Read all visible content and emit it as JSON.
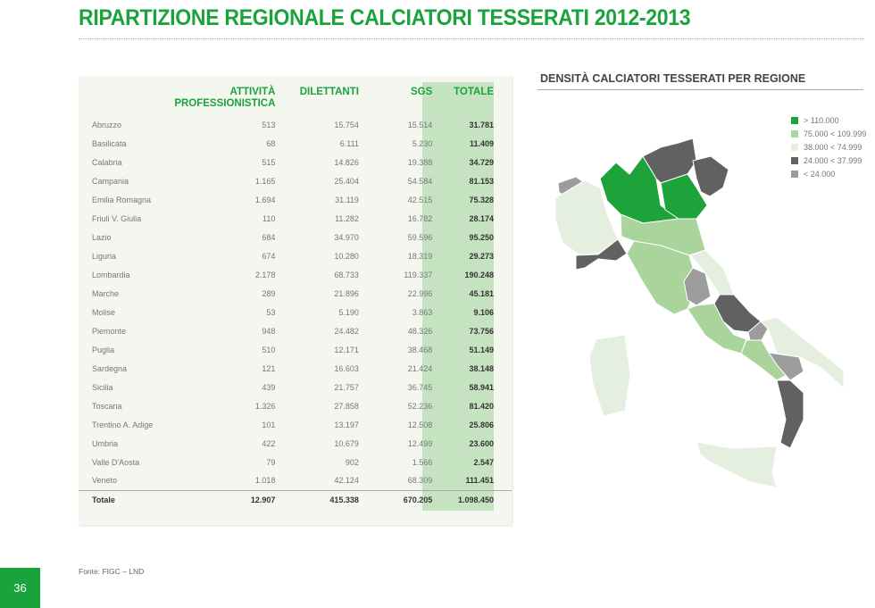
{
  "title": "RIPARTIZIONE REGIONALE CALCIATORI TESSERATI 2012-2013",
  "table": {
    "headers": [
      "",
      "ATTIVITÀ PROFESSIONISTICA",
      "DILETTANTI",
      "SGS",
      "TOTALE"
    ],
    "rows": [
      [
        "Abruzzo",
        "513",
        "15.754",
        "15.514",
        "31.781"
      ],
      [
        "Basilicata",
        "68",
        "6.111",
        "5.230",
        "11.409"
      ],
      [
        "Calabria",
        "515",
        "14.826",
        "19.388",
        "34.729"
      ],
      [
        "Campania",
        "1.165",
        "25.404",
        "54.584",
        "81.153"
      ],
      [
        "Emilia Romagna",
        "1.694",
        "31.119",
        "42.515",
        "75.328"
      ],
      [
        "Friuli V. Giulia",
        "110",
        "11.282",
        "16.782",
        "28.174"
      ],
      [
        "Lazio",
        "684",
        "34.970",
        "59.596",
        "95.250"
      ],
      [
        "Liguria",
        "674",
        "10.280",
        "18.319",
        "29.273"
      ],
      [
        "Lombardia",
        "2.178",
        "68.733",
        "119.337",
        "190.248"
      ],
      [
        "Marche",
        "289",
        "21.896",
        "22.996",
        "45.181"
      ],
      [
        "Molise",
        "53",
        "5.190",
        "3.863",
        "9.106"
      ],
      [
        "Piemonte",
        "948",
        "24.482",
        "48.326",
        "73.756"
      ],
      [
        "Puglia",
        "510",
        "12.171",
        "38.468",
        "51.149"
      ],
      [
        "Sardegna",
        "121",
        "16.603",
        "21.424",
        "38.148"
      ],
      [
        "Sicilia",
        "439",
        "21.757",
        "36.745",
        "58.941"
      ],
      [
        "Toscana",
        "1.326",
        "27.858",
        "52.236",
        "81.420"
      ],
      [
        "Trentino A. Adige",
        "101",
        "13.197",
        "12.508",
        "25.806"
      ],
      [
        "Umbria",
        "422",
        "10.679",
        "12.499",
        "23.600"
      ],
      [
        "Valle D'Aosta",
        "79",
        "902",
        "1.566",
        "2.547"
      ],
      [
        "Veneto",
        "1.018",
        "42.124",
        "68.309",
        "111.451"
      ]
    ],
    "total": [
      "Totale",
      "12.907",
      "415.338",
      "670.205",
      "1.098.450"
    ]
  },
  "map": {
    "title": "DENSITÀ CALCIATORI TESSERATI PER REGIONE",
    "legend": [
      {
        "label": "> 110.000",
        "color": "#1ea33a"
      },
      {
        "label": "75.000 < 109.999",
        "color": "#a9d49b"
      },
      {
        "label": "38.000 < 74.999",
        "color": "#e4efdf"
      },
      {
        "label": "24.000 < 37.999",
        "color": "#616161"
      },
      {
        "label": "< 24.000",
        "color": "#9c9c9c"
      }
    ]
  },
  "source": "Fonte: FIGC – LND",
  "page_number": "36"
}
